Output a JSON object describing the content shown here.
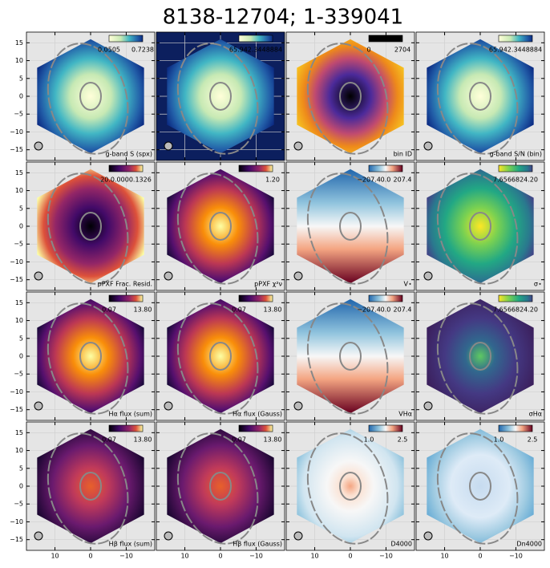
{
  "chart_data": {
    "type": "map-grid",
    "title": "8138-12704; 1-339041",
    "xlim": [
      18,
      -18
    ],
    "ylim": [
      -18,
      18
    ],
    "xticks": [
      10,
      0,
      {
        "value": -10,
        "label": "−10"
      }
    ],
    "yticks": [
      15,
      10,
      5,
      0,
      {
        "value": -5,
        "label": "−5"
      },
      {
        "value": -10,
        "label": "−10"
      },
      {
        "value": -15,
        "label": "−15"
      }
    ],
    "grid": true,
    "panels": [
      {
        "label": "g-band S (spx)",
        "colorbar": [
          "0.0505",
          "0.7238"
        ]
      },
      {
        "label": "",
        "colorbar": [
          "65.942.3448884"
        ]
      },
      {
        "label": "bin ID",
        "colorbar": [
          "0",
          "2704"
        ]
      },
      {
        "label": "g-band S/N (bin)",
        "colorbar": [
          "65.942.3448884"
        ]
      },
      {
        "label": "pPXF Frac. Resid.",
        "colorbar": [
          "20.0.0000.1326"
        ]
      },
      {
        "label": "pPXF χ²ν",
        "colorbar": [
          "1.20"
        ]
      },
      {
        "label": "V⋆",
        "colorbar": [
          "−207.4",
          "0.0",
          "207.4"
        ]
      },
      {
        "label": "σ⋆",
        "colorbar": [
          "7.6566824.20"
        ]
      },
      {
        "label": "Hα flux (sum)",
        "colorbar": [
          "0.07",
          "13.80"
        ]
      },
      {
        "label": "Hα flux (Gauss)",
        "colorbar": [
          "0.07",
          "13.80"
        ]
      },
      {
        "label": "VHα",
        "colorbar": [
          "−207.4",
          "0.0",
          "207.4"
        ]
      },
      {
        "label": "σHα",
        "colorbar": [
          "7.6566824.20"
        ]
      },
      {
        "label": "Hβ flux (sum)",
        "colorbar": [
          "0.07",
          "13.80"
        ]
      },
      {
        "label": "Hβ flux (Gauss)",
        "colorbar": [
          "0.07",
          "13.80"
        ]
      },
      {
        "label": "D4000",
        "colorbar": [
          "1.0",
          "2.5"
        ]
      },
      {
        "label": "Dn4000",
        "colorbar": [
          "1.0",
          "2.5"
        ]
      }
    ]
  }
}
